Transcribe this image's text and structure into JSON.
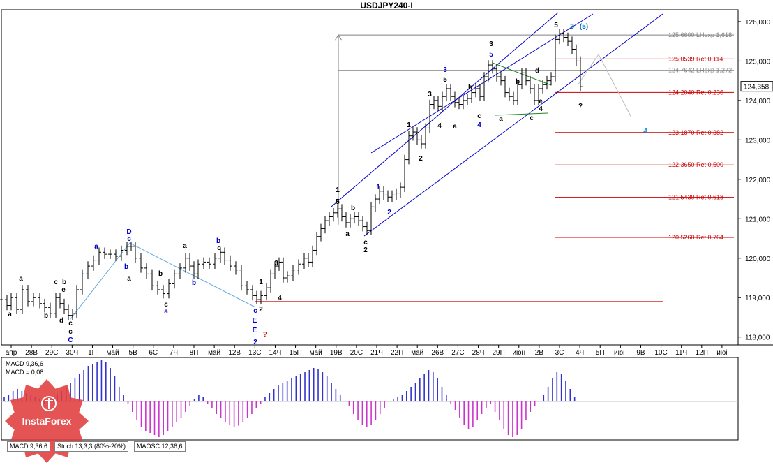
{
  "chart_data": {
    "type": "candlestick",
    "title": "USDJPY240-I",
    "instrument": "USDJPY",
    "timeframe": "H4",
    "current_price": "124,358",
    "ylim": [
      117.8,
      126.3
    ],
    "y_ticks": [
      "126,000",
      "125,000",
      "124,000",
      "123,000",
      "122,000",
      "121,000",
      "120,000",
      "119,000",
      "118,000"
    ],
    "x_ticks": [
      "апр",
      "28В",
      "29С",
      "30Ч",
      "1П",
      "май",
      "5В",
      "6С",
      "7Ч",
      "8П",
      "май",
      "12В",
      "13С",
      "14Ч",
      "15П",
      "май",
      "19В",
      "20С",
      "21Ч",
      "22П",
      "май",
      "26В",
      "27С",
      "28Ч",
      "29П",
      "июн",
      "2В",
      "3С",
      "4Ч",
      "5П",
      "июн",
      "9В",
      "10С",
      "11Ч",
      "12П",
      "июі"
    ],
    "fib_levels": [
      {
        "label": "125,6600 LHexp 1,618",
        "value": 125.66,
        "color": "#808080"
      },
      {
        "label": "125,0539 Ret 0,114",
        "value": 125.0539,
        "color": "#cc0000"
      },
      {
        "label": "124,7642 LHexp 1,272",
        "value": 124.7642,
        "color": "#808080"
      },
      {
        "label": "124,2040 Ret 0,236",
        "value": 124.204,
        "color": "#cc0000"
      },
      {
        "label": "123,1870 Ret 0,382",
        "value": 123.187,
        "color": "#cc0000"
      },
      {
        "label": "122,3650 Ret 0,500",
        "value": 122.365,
        "color": "#cc0000"
      },
      {
        "label": "121,5430 Ret 0,618",
        "value": 121.543,
        "color": "#cc0000"
      },
      {
        "label": "120,5260 Ret 0,764",
        "value": 120.526,
        "color": "#cc0000"
      }
    ],
    "support_level": 118.9,
    "price_path": [
      [
        0,
        118.95
      ],
      [
        8,
        118.8
      ],
      [
        14,
        119.0
      ],
      [
        22,
        118.7
      ],
      [
        30,
        119.2
      ],
      [
        38,
        118.9
      ],
      [
        46,
        119.0
      ],
      [
        55,
        118.85
      ],
      [
        62,
        118.75
      ],
      [
        70,
        118.6
      ],
      [
        78,
        119.0
      ],
      [
        84,
        118.85
      ],
      [
        90,
        118.7
      ],
      [
        96,
        118.55
      ],
      [
        102,
        118.6
      ],
      [
        108,
        119.2
      ],
      [
        116,
        119.6
      ],
      [
        124,
        119.8
      ],
      [
        132,
        119.95
      ],
      [
        140,
        120.15
      ],
      [
        148,
        120.1
      ],
      [
        156,
        120.1
      ],
      [
        164,
        120.05
      ],
      [
        172,
        120.2
      ],
      [
        180,
        120.3
      ],
      [
        186,
        120.3
      ],
      [
        192,
        120.0
      ],
      [
        200,
        119.75
      ],
      [
        208,
        119.6
      ],
      [
        216,
        119.3
      ],
      [
        224,
        119.2
      ],
      [
        232,
        119.1
      ],
      [
        240,
        119.35
      ],
      [
        248,
        119.6
      ],
      [
        256,
        119.75
      ],
      [
        264,
        120.0
      ],
      [
        270,
        119.8
      ],
      [
        276,
        119.6
      ],
      [
        282,
        119.85
      ],
      [
        290,
        119.9
      ],
      [
        298,
        119.85
      ],
      [
        306,
        120.0
      ],
      [
        314,
        120.15
      ],
      [
        320,
        119.95
      ],
      [
        328,
        119.8
      ],
      [
        336,
        119.7
      ],
      [
        344,
        119.3
      ],
      [
        352,
        119.2
      ],
      [
        360,
        119.05
      ],
      [
        366,
        118.95
      ],
      [
        372,
        119.05
      ],
      [
        380,
        119.25
      ],
      [
        386,
        119.6
      ],
      [
        392,
        119.8
      ],
      [
        398,
        119.9
      ],
      [
        404,
        119.5
      ],
      [
        410,
        119.55
      ],
      [
        418,
        119.7
      ],
      [
        426,
        119.85
      ],
      [
        434,
        120.0
      ],
      [
        440,
        119.9
      ],
      [
        446,
        120.2
      ],
      [
        452,
        120.55
      ],
      [
        458,
        120.75
      ],
      [
        464,
        120.95
      ],
      [
        470,
        121.05
      ],
      [
        476,
        121.15
      ],
      [
        482,
        121.25
      ],
      [
        488,
        121.05
      ],
      [
        494,
        120.9
      ],
      [
        500,
        121.0
      ],
      [
        506,
        121.05
      ],
      [
        512,
        120.95
      ],
      [
        518,
        120.8
      ],
      [
        524,
        120.7
      ],
      [
        530,
        121.3
      ],
      [
        536,
        121.5
      ],
      [
        542,
        121.7
      ],
      [
        548,
        121.6
      ],
      [
        554,
        121.55
      ],
      [
        560,
        121.6
      ],
      [
        566,
        121.65
      ],
      [
        572,
        121.8
      ],
      [
        578,
        122.5
      ],
      [
        584,
        123.1
      ],
      [
        590,
        123.2
      ],
      [
        596,
        123.0
      ],
      [
        602,
        122.9
      ],
      [
        608,
        123.3
      ],
      [
        614,
        123.9
      ],
      [
        620,
        124.0
      ],
      [
        626,
        123.85
      ],
      [
        632,
        124.1
      ],
      [
        638,
        124.3
      ],
      [
        644,
        124.1
      ],
      [
        650,
        123.95
      ],
      [
        656,
        123.9
      ],
      [
        662,
        124.0
      ],
      [
        668,
        124.05
      ],
      [
        674,
        124.2
      ],
      [
        680,
        124.3
      ],
      [
        686,
        124.1
      ],
      [
        692,
        124.6
      ],
      [
        698,
        124.9
      ],
      [
        704,
        124.8
      ],
      [
        710,
        124.6
      ],
      [
        716,
        124.5
      ],
      [
        722,
        124.2
      ],
      [
        728,
        124.1
      ],
      [
        734,
        124.0
      ],
      [
        740,
        124.4
      ],
      [
        746,
        124.7
      ],
      [
        752,
        124.5
      ],
      [
        758,
        124.3
      ],
      [
        764,
        124.0
      ],
      [
        770,
        124.3
      ],
      [
        776,
        124.4
      ],
      [
        782,
        124.5
      ],
      [
        788,
        124.6
      ],
      [
        794,
        125.55
      ],
      [
        800,
        125.7
      ],
      [
        806,
        125.6
      ],
      [
        812,
        125.5
      ],
      [
        818,
        125.3
      ],
      [
        824,
        125.0
      ],
      [
        830,
        124.35
      ]
    ],
    "macd": {
      "label": "MACD 9,36,6",
      "value_label": "MACD = 0,08"
    },
    "macd_bars": [
      0.2,
      0.3,
      0.5,
      0.6,
      0.5,
      0.4,
      0.3,
      0.2,
      0.1,
      -0.1,
      0.05,
      0.2,
      0.35,
      0.5,
      0.7,
      0.9,
      1.1,
      1.3,
      1.5,
      1.7,
      1.8,
      1.9,
      2.0,
      1.9,
      1.6,
      1.2,
      0.7,
      0.3,
      -0.1,
      -0.5,
      -0.9,
      -1.2,
      -1.4,
      -1.5,
      -1.6,
      -1.7,
      -1.6,
      -1.4,
      -1.2,
      -1.0,
      -0.8,
      -0.5,
      -0.2,
      0.1,
      0.3,
      0.2,
      -0.1,
      -0.3,
      -0.6,
      -0.8,
      -1.0,
      -1.1,
      -1.2,
      -1.15,
      -1.0,
      -0.8,
      -0.6,
      -0.3,
      -0.1,
      0.2,
      0.4,
      0.6,
      0.8,
      0.9,
      1.0,
      1.1,
      1.2,
      1.3,
      1.4,
      1.5,
      1.6,
      1.55,
      1.4,
      1.2,
      0.9,
      0.6,
      0.3,
      0.0,
      -0.2,
      -0.6,
      -0.9,
      -1.1,
      -1.2,
      -1.1,
      -0.9,
      -0.6,
      -0.3,
      0.0,
      0.1,
      0.2,
      0.3,
      0.5,
      0.7,
      0.9,
      1.1,
      1.3,
      1.5,
      1.4,
      1.1,
      0.7,
      0.3,
      -0.1,
      -0.4,
      -0.8,
      -1.1,
      -1.3,
      -1.2,
      -0.9,
      -0.6,
      -0.3,
      -0.1,
      -0.5,
      -0.9,
      -1.3,
      -1.6,
      -1.7,
      -1.6,
      -1.3,
      -0.9,
      -0.5,
      -0.2,
      0.0,
      0.3,
      0.7,
      1.1,
      1.4,
      1.3,
      1.0,
      0.6,
      0.2
    ]
  },
  "wave_labels": [
    {
      "text": "a",
      "x": 14,
      "y": 453,
      "color": "#000000"
    },
    {
      "text": "a",
      "x": 30,
      "y": 402,
      "color": "#000000"
    },
    {
      "text": "b",
      "x": 66,
      "y": 455,
      "color": "#000000"
    },
    {
      "text": "c",
      "x": 80,
      "y": 407,
      "color": "#000000"
    },
    {
      "text": "e",
      "x": 91,
      "y": 418,
      "color": "#000000"
    },
    {
      "text": "d",
      "x": 88,
      "y": 462,
      "color": "#000000"
    },
    {
      "text": "b",
      "x": 92,
      "y": 407,
      "color": "#000000"
    },
    {
      "text": "c",
      "x": 101,
      "y": 466,
      "color": "#000000"
    },
    {
      "text": "c",
      "x": 101,
      "y": 478,
      "color": "#000000"
    },
    {
      "text": "C",
      "x": 101,
      "y": 490,
      "color": "#0000cc"
    },
    {
      "text": "a",
      "x": 138,
      "y": 356,
      "color": "#0000cc"
    },
    {
      "text": "D",
      "x": 185,
      "y": 335,
      "color": "#0000cc"
    },
    {
      "text": "c",
      "x": 185,
      "y": 345,
      "color": "#0000cc"
    },
    {
      "text": "b",
      "x": 181,
      "y": 385,
      "color": "#0000cc"
    },
    {
      "text": "a",
      "x": 185,
      "y": 402,
      "color": "#000000"
    },
    {
      "text": "b",
      "x": 230,
      "y": 395,
      "color": "#000000"
    },
    {
      "text": "c",
      "x": 238,
      "y": 439,
      "color": "#000000"
    },
    {
      "text": "a",
      "x": 238,
      "y": 449,
      "color": "#0000cc"
    },
    {
      "text": "a",
      "x": 265,
      "y": 355,
      "color": "#000000"
    },
    {
      "text": "b",
      "x": 278,
      "y": 408,
      "color": "#0000cc"
    },
    {
      "text": "b",
      "x": 313,
      "y": 348,
      "color": "#0000cc"
    },
    {
      "text": "c",
      "x": 314,
      "y": 358,
      "color": "#000000"
    },
    {
      "text": "c",
      "x": 366,
      "y": 448,
      "color": "#0000cc"
    },
    {
      "text": "E",
      "x": 365,
      "y": 462,
      "color": "#0000cc"
    },
    {
      "text": "E",
      "x": 365,
      "y": 476,
      "color": "#0000cc"
    },
    {
      "text": "?",
      "x": 380,
      "y": 482,
      "color": "#cc0000"
    },
    {
      "text": "2",
      "x": 366,
      "y": 493,
      "color": "#0000cc"
    },
    {
      "text": "2",
      "x": 374,
      "y": 446,
      "color": "#000000"
    },
    {
      "text": "1",
      "x": 374,
      "y": 407,
      "color": "#000000"
    },
    {
      "text": "3",
      "x": 396,
      "y": 380,
      "color": "#000000"
    },
    {
      "text": "4",
      "x": 401,
      "y": 430,
      "color": "#000000"
    },
    {
      "text": "1",
      "x": 484,
      "y": 275,
      "color": "#000000"
    },
    {
      "text": "5",
      "x": 484,
      "y": 292,
      "color": "#000000"
    },
    {
      "text": "b",
      "x": 506,
      "y": 301,
      "color": "#000000"
    },
    {
      "text": "a",
      "x": 498,
      "y": 338,
      "color": "#000000"
    },
    {
      "text": "c",
      "x": 524,
      "y": 350,
      "color": "#000000"
    },
    {
      "text": "2",
      "x": 524,
      "y": 361,
      "color": "#000000"
    },
    {
      "text": "1",
      "x": 542,
      "y": 271,
      "color": "#0000cc"
    },
    {
      "text": "2",
      "x": 558,
      "y": 307,
      "color": "#0000cc"
    },
    {
      "text": "1",
      "x": 586,
      "y": 182,
      "color": "#000000"
    },
    {
      "text": "2",
      "x": 603,
      "y": 230,
      "color": "#000000"
    },
    {
      "text": "3",
      "x": 616,
      "y": 138,
      "color": "#000000"
    },
    {
      "text": "4",
      "x": 630,
      "y": 183,
      "color": "#000000"
    },
    {
      "text": "3",
      "x": 638,
      "y": 103,
      "color": "#0000cc"
    },
    {
      "text": "5",
      "x": 638,
      "y": 117,
      "color": "#000000"
    },
    {
      "text": "a",
      "x": 652,
      "y": 184,
      "color": "#000000"
    },
    {
      "text": "b",
      "x": 674,
      "y": 128,
      "color": "#000000"
    },
    {
      "text": "c",
      "x": 687,
      "y": 169,
      "color": "#000000"
    },
    {
      "text": "4",
      "x": 687,
      "y": 182,
      "color": "#0000cc"
    },
    {
      "text": "3",
      "x": 704,
      "y": 66,
      "color": "#000000"
    },
    {
      "text": "5",
      "x": 704,
      "y": 81,
      "color": "#0000cc"
    },
    {
      "text": "a",
      "x": 718,
      "y": 173,
      "color": "#000000"
    },
    {
      "text": "b",
      "x": 742,
      "y": 120,
      "color": "#000000"
    },
    {
      "text": "c",
      "x": 762,
      "y": 172,
      "color": "#000000"
    },
    {
      "text": "d",
      "x": 770,
      "y": 104,
      "color": "#000000"
    },
    {
      "text": "e",
      "x": 775,
      "y": 148,
      "color": "#000000"
    },
    {
      "text": "4",
      "x": 775,
      "y": 159,
      "color": "#000000"
    },
    {
      "text": "5",
      "x": 797,
      "y": 39,
      "color": "#000000"
    },
    {
      "text": "3",
      "x": 820,
      "y": 41,
      "color": "#0070c0"
    },
    {
      "text": "(5)",
      "x": 837,
      "y": 41,
      "color": "#0070c0"
    },
    {
      "text": "?",
      "x": 832,
      "y": 155,
      "color": "#000000"
    },
    {
      "text": "4",
      "x": 925,
      "y": 191,
      "color": "#1e90c8"
    }
  ],
  "tabs": [
    "MACD 9,36,6",
    "Stoch 13,3,3 (80%-20%)",
    "MAOSC 12,36,6"
  ],
  "logo": {
    "text": "InstaForex",
    "color": "#e03c3c"
  }
}
